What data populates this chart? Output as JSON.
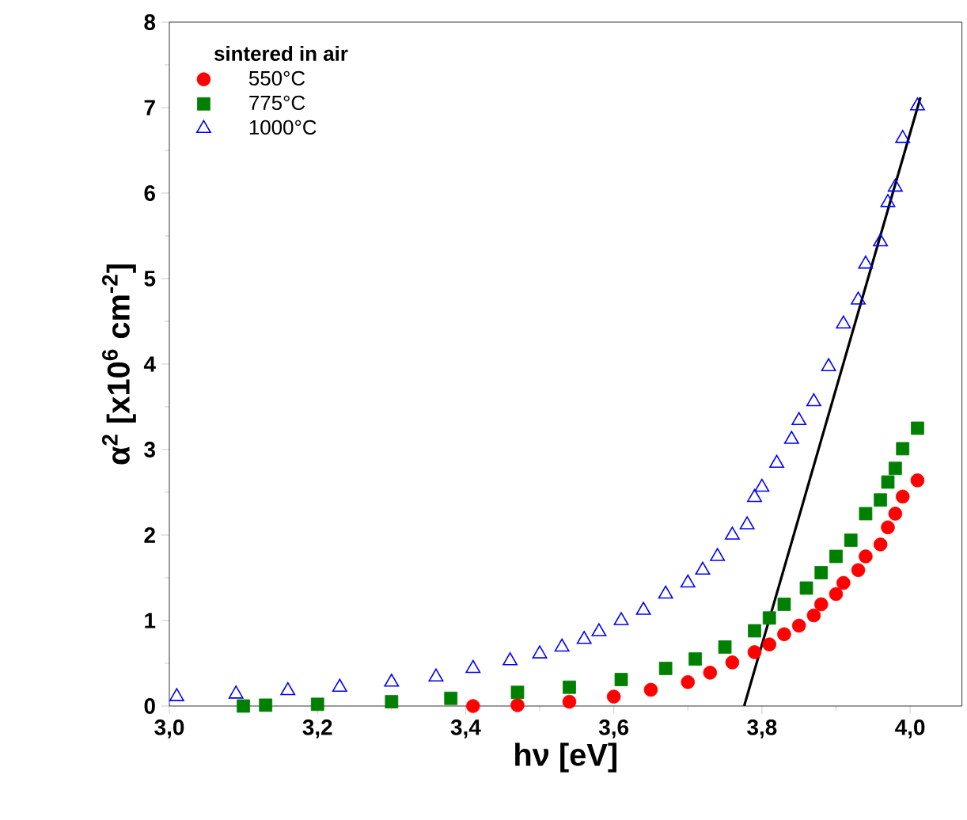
{
  "chart_data": {
    "type": "scatter",
    "xlabel": "hν [eV]",
    "ylabel": "α$^{2}$ [x10$^{6}$ cm$^{-2}$]",
    "legend_title": "**sintered in air**",
    "legend": "top left",
    "xlim": [
      3.0,
      4.07
    ],
    "ylim": [
      0,
      8
    ],
    "xticks": [
      {
        "value": 3.0,
        "label": "3,0"
      },
      {
        "value": 3.2,
        "label": "3,2"
      },
      {
        "value": 3.4,
        "label": "3,4"
      },
      {
        "value": 3.6,
        "label": "3,6"
      },
      {
        "value": 3.8,
        "label": "3,8"
      },
      {
        "value": 4.0,
        "label": "4,0"
      }
    ],
    "yticks": [
      0,
      1,
      2,
      3,
      4,
      5,
      6,
      7,
      8
    ],
    "series": [
      {
        "name": "550°C",
        "color": "#ff0000",
        "marker": "circle",
        "x": [
          3.41,
          3.47,
          3.54,
          3.6,
          3.65,
          3.7,
          3.73,
          3.76,
          3.79,
          3.81,
          3.83,
          3.85,
          3.87,
          3.88,
          3.9,
          3.91,
          3.93,
          3.94,
          3.96,
          3.97,
          3.98,
          3.99,
          4.01
        ],
        "values": [
          0.0,
          0.01,
          0.05,
          0.11,
          0.19,
          0.28,
          0.39,
          0.51,
          0.63,
          0.72,
          0.84,
          0.94,
          1.06,
          1.19,
          1.31,
          1.44,
          1.59,
          1.75,
          1.89,
          2.09,
          2.25,
          2.45,
          2.64
        ]
      },
      {
        "name": "775°C",
        "color": "#008000",
        "marker": "square",
        "x": [
          3.1,
          3.13,
          3.2,
          3.3,
          3.38,
          3.47,
          3.54,
          3.61,
          3.67,
          3.71,
          3.75,
          3.79,
          3.81,
          3.83,
          3.86,
          3.88,
          3.9,
          3.92,
          3.94,
          3.96,
          3.97,
          3.98,
          3.99,
          4.01
        ],
        "values": [
          0.0,
          0.01,
          0.02,
          0.05,
          0.09,
          0.16,
          0.22,
          0.31,
          0.44,
          0.55,
          0.69,
          0.88,
          1.03,
          1.19,
          1.38,
          1.56,
          1.75,
          1.94,
          2.25,
          2.41,
          2.62,
          2.78,
          3.01,
          3.25
        ]
      },
      {
        "name": "1000°C",
        "color": "#0000ff",
        "marker": "triangle",
        "x": [
          3.01,
          3.09,
          3.16,
          3.23,
          3.3,
          3.36,
          3.41,
          3.46,
          3.5,
          3.53,
          3.56,
          3.58,
          3.61,
          3.64,
          3.67,
          3.7,
          3.72,
          3.74,
          3.76,
          3.78,
          3.79,
          3.8,
          3.82,
          3.84,
          3.85,
          3.87,
          3.89,
          3.91,
          3.93,
          3.94,
          3.96,
          3.97,
          3.98,
          3.99,
          4.01
        ],
        "values": [
          0.11,
          0.14,
          0.18,
          0.22,
          0.28,
          0.34,
          0.44,
          0.53,
          0.61,
          0.69,
          0.78,
          0.87,
          1.0,
          1.12,
          1.31,
          1.44,
          1.59,
          1.75,
          2.0,
          2.12,
          2.44,
          2.56,
          2.84,
          3.12,
          3.34,
          3.56,
          3.97,
          4.47,
          4.75,
          5.17,
          5.43,
          5.89,
          6.07,
          6.64,
          7.02
        ]
      },
      {
        "type": "line",
        "color": "#000000",
        "line_style": "solid",
        "x": [
          3.776,
          4.014
        ],
        "values": [
          0,
          7.12
        ]
      }
    ]
  }
}
